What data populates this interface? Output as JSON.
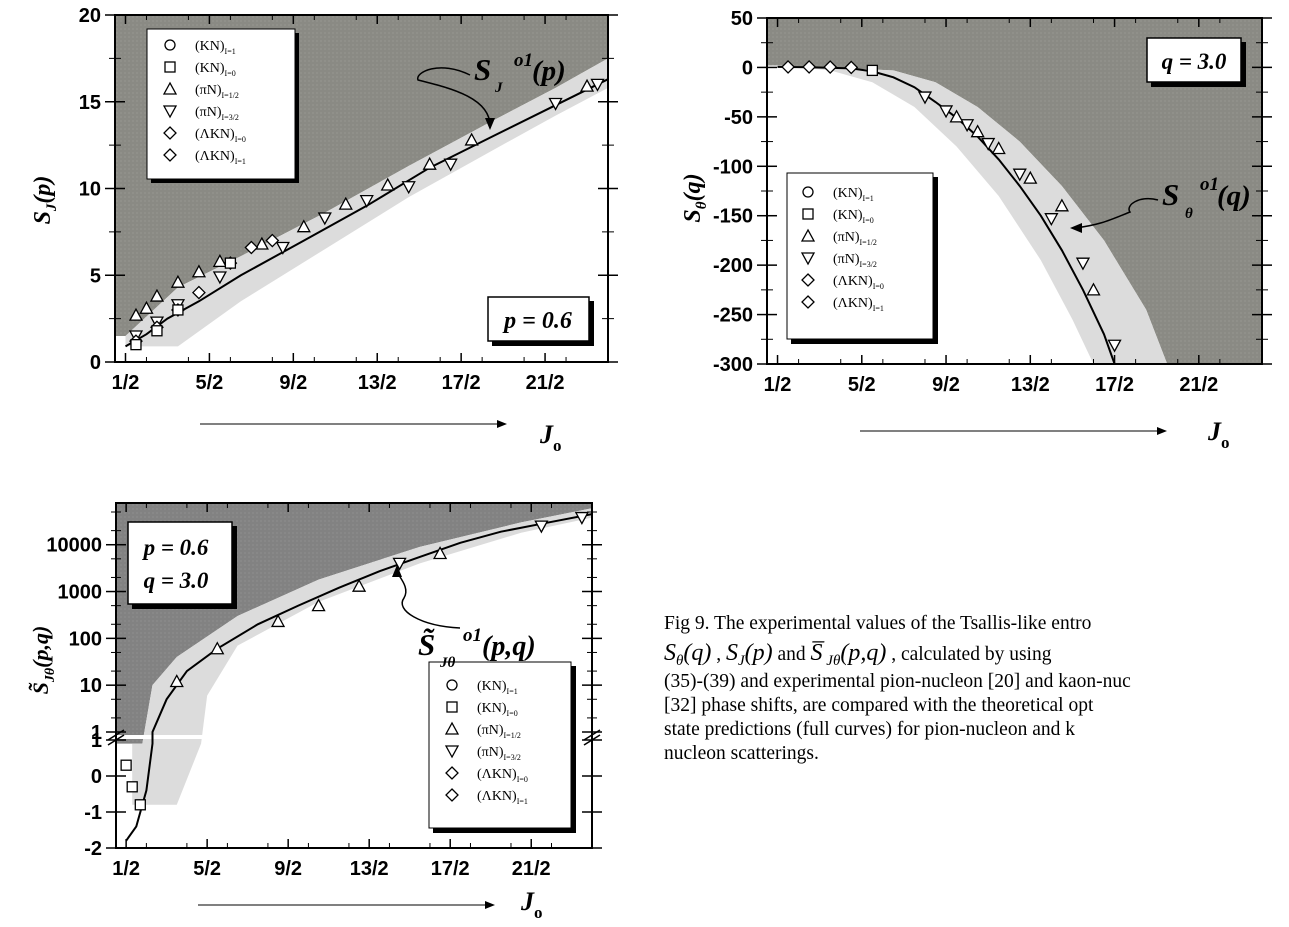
{
  "chart_data": [
    {
      "type": "scatter",
      "panel": "top-left",
      "ylabel": "S_J(p)",
      "xlabel": "J_0",
      "x_ticks": [
        "1/2",
        "5/2",
        "9/2",
        "13/2",
        "17/2",
        "21/2"
      ],
      "y_ticks": [
        "0",
        "5",
        "10",
        "15",
        "20"
      ],
      "xlim": [
        0,
        23.5
      ],
      "ylim": [
        0,
        20
      ],
      "param_box": "p = 0.6",
      "curve_label": "S_J^{o1}(p)",
      "legend": [
        "(KN)_{I=1}",
        "(KN)_{I=0}",
        "(πN)_{I=1/2}",
        "(πN)_{I=3/2}",
        "(ΛKN)_{I=0}",
        "(ΛKN)_{I=1}"
      ],
      "theory_curve": [
        [
          0.5,
          0.9
        ],
        [
          1.5,
          1.6
        ],
        [
          2.5,
          2.5
        ],
        [
          4,
          3.5
        ],
        [
          6,
          5.0
        ],
        [
          9,
          7.0
        ],
        [
          12,
          9.0
        ],
        [
          15,
          11.2
        ],
        [
          18,
          13.0
        ],
        [
          21,
          14.8
        ],
        [
          23.5,
          16.3
        ]
      ],
      "upper_bound": [
        [
          0.5,
          1.5
        ],
        [
          3,
          4.3
        ],
        [
          6,
          6.1
        ],
        [
          10,
          8.6
        ],
        [
          14,
          11.3
        ],
        [
          18,
          13.9
        ],
        [
          21,
          15.8
        ],
        [
          23.5,
          17.5
        ]
      ],
      "lower_bound": [
        [
          3,
          0.9
        ],
        [
          6,
          3.5
        ],
        [
          10,
          6.5
        ],
        [
          14,
          9.5
        ],
        [
          18,
          12.2
        ],
        [
          21,
          14.2
        ],
        [
          23.5,
          15.8
        ]
      ],
      "series": [
        {
          "name": "(πN)_{I=1/2}",
          "points": [
            [
              1,
              2.7
            ],
            [
              1.5,
              3.1
            ],
            [
              2,
              3.8
            ],
            [
              3,
              4.6
            ],
            [
              4,
              5.2
            ],
            [
              5,
              5.8
            ],
            [
              7,
              6.8
            ],
            [
              9,
              7.8
            ],
            [
              11,
              9.1
            ],
            [
              13,
              10.2
            ],
            [
              15,
              11.4
            ],
            [
              17,
              12.8
            ],
            [
              22.5,
              15.9
            ]
          ]
        },
        {
          "name": "(πN)_{I=3/2}",
          "points": [
            [
              1,
              1.5
            ],
            [
              2,
              2.3
            ],
            [
              3,
              3.3
            ],
            [
              5,
              4.9
            ],
            [
              8,
              6.6
            ],
            [
              10,
              8.3
            ],
            [
              12,
              9.3
            ],
            [
              14,
              10.1
            ],
            [
              16,
              11.4
            ],
            [
              21,
              14.9
            ],
            [
              23,
              16.0
            ]
          ]
        },
        {
          "name": "(ΛKN)_{I=0}",
          "points": [
            [
              1,
              1.2
            ],
            [
              2,
              2.0
            ],
            [
              3,
              3.0
            ],
            [
              4,
              4.0
            ],
            [
              5.5,
              5.7
            ],
            [
              6.5,
              6.6
            ],
            [
              7.5,
              7.0
            ]
          ]
        },
        {
          "name": "(KN)_{I=0}",
          "points": [
            [
              1,
              1.0
            ],
            [
              2,
              1.8
            ],
            [
              3,
              3.0
            ],
            [
              5.5,
              5.7
            ]
          ]
        }
      ]
    },
    {
      "type": "scatter",
      "panel": "top-right",
      "ylabel": "S_θ(q)",
      "xlabel": "J_0",
      "x_ticks": [
        "1/2",
        "5/2",
        "9/2",
        "13/2",
        "17/2",
        "21/2"
      ],
      "y_ticks": [
        "50",
        "0",
        "-50",
        "-100",
        "-150",
        "-200",
        "-250",
        "-300"
      ],
      "xlim": [
        0,
        23.5
      ],
      "ylim": [
        -300,
        50
      ],
      "param_box": "q = 3.0",
      "curve_label": "S_θ^{o1}(q)",
      "legend": [
        "(KN)_{I=1}",
        "(KN)_{I=0}",
        "(πN)_{I=1/2}",
        "(πN)_{I=3/2}",
        "(ΛKN)_{I=0}",
        "(ΛKN)_{I=1}"
      ],
      "theory_curve": [
        [
          0.5,
          0.5
        ],
        [
          2,
          0.2
        ],
        [
          4,
          -1
        ],
        [
          5,
          -4
        ],
        [
          6,
          -10
        ],
        [
          7,
          -20
        ],
        [
          8,
          -35
        ],
        [
          9,
          -51
        ],
        [
          10,
          -70
        ],
        [
          11,
          -93
        ],
        [
          12,
          -120
        ],
        [
          13,
          -150
        ],
        [
          14,
          -185
        ],
        [
          15,
          -225
        ],
        [
          16,
          -270
        ],
        [
          16.5,
          -300
        ]
      ],
      "upper_bound": [
        [
          0.5,
          2
        ],
        [
          6,
          -3
        ],
        [
          8,
          -15
        ],
        [
          10,
          -40
        ],
        [
          12,
          -75
        ],
        [
          14,
          -120
        ],
        [
          16,
          -175
        ],
        [
          18,
          -245
        ],
        [
          19,
          -300
        ]
      ],
      "lower_bound": [
        [
          3,
          -3
        ],
        [
          5,
          -15
        ],
        [
          7,
          -40
        ],
        [
          9,
          -80
        ],
        [
          11,
          -130
        ],
        [
          13,
          -195
        ],
        [
          14.5,
          -255
        ],
        [
          15.5,
          -300
        ]
      ],
      "series": [
        {
          "name": "(πN)_{I=3/2}",
          "points": [
            [
              7.5,
              -30
            ],
            [
              8.5,
              -44
            ],
            [
              9.5,
              -58
            ],
            [
              10.5,
              -77
            ],
            [
              12,
              -108
            ],
            [
              13.5,
              -153
            ],
            [
              15,
              -198
            ],
            [
              16.5,
              -281
            ]
          ]
        },
        {
          "name": "(πN)_{I=1/2}",
          "points": [
            [
              9,
              -50
            ],
            [
              10,
              -65
            ],
            [
              11,
              -82
            ],
            [
              12.5,
              -112
            ],
            [
              14,
              -140
            ],
            [
              15.5,
              -225
            ]
          ]
        },
        {
          "name": "(KN)_{I=0}",
          "points": [
            [
              5,
              -3
            ]
          ]
        },
        {
          "name": "(ΛKN)_{I=0}",
          "points": [
            [
              1,
              0.5
            ],
            [
              2,
              0.5
            ],
            [
              3,
              0.4
            ],
            [
              4,
              0
            ]
          ]
        }
      ]
    },
    {
      "type": "scatter",
      "panel": "bottom-left",
      "ylabel": "S̃_Jθ(p,q)",
      "xlabel": "J_0",
      "x_ticks": [
        "1/2",
        "5/2",
        "9/2",
        "13/2",
        "17/2",
        "21/2"
      ],
      "y_ticks_log": [
        "10000",
        "1000",
        "100",
        "10",
        "1"
      ],
      "y_ticks_linear": [
        "1",
        "0",
        "-1",
        "-2"
      ],
      "log_range": [
        1,
        50000
      ],
      "linear_range": [
        -2,
        1
      ],
      "xlim": [
        0,
        23.5
      ],
      "param_box": [
        "p = 0.6",
        "q = 3.0"
      ],
      "curve_label": "S̃_Jθ^{o1}(p,q)",
      "legend": [
        "(KN)_{I=1}",
        "(KN)_{I=0}",
        "(πN)_{I=1/2}",
        "(πN)_{I=3/2}",
        "(ΛKN)_{I=0}",
        "(ΛKN)_{I=1}"
      ],
      "theory_curve_log": [
        [
          1.8,
          1.0
        ],
        [
          2.5,
          5
        ],
        [
          3.5,
          20
        ],
        [
          5,
          60
        ],
        [
          7,
          200
        ],
        [
          9,
          500
        ],
        [
          11,
          1200
        ],
        [
          13,
          2700
        ],
        [
          15,
          5500
        ],
        [
          17,
          11000
        ],
        [
          19,
          19000
        ],
        [
          21,
          28000
        ],
        [
          23.5,
          45000
        ]
      ],
      "theory_curve_linear": [
        [
          0.5,
          -1.8
        ],
        [
          1,
          -1.4
        ],
        [
          1.5,
          -0.4
        ],
        [
          1.8,
          0.9
        ]
      ],
      "series": [
        {
          "name": "(πN)_{I=1/2}",
          "points_log": [
            [
              3,
              12
            ],
            [
              5,
              60
            ],
            [
              8,
              230
            ],
            [
              10,
              500
            ],
            [
              12,
              1300
            ],
            [
              16,
              6500
            ]
          ]
        },
        {
          "name": "(πN)_{I=3/2}",
          "points_log": [
            [
              14,
              4000
            ],
            [
              21,
              25000
            ],
            [
              23,
              38000
            ]
          ]
        },
        {
          "name": "(KN)_{I=0}",
          "points_linear": [
            [
              0.5,
              0.3
            ],
            [
              0.8,
              -0.3
            ],
            [
              1.2,
              -0.8
            ]
          ]
        }
      ]
    }
  ],
  "caption": {
    "line1": "Fig 9. The experimental   values of the Tsallis-like entro",
    "line2_part1": "S",
    "line2_sub1": "θ",
    "line2_part2": "(q)",
    "line2_sep1": " , ",
    "line2_part3": "S",
    "line2_sub2": "J",
    "line2_part4": "(p)",
    "line2_and": "  and  ",
    "line2_part5": "S̅",
    "line2_sub3": " Jθ",
    "line2_part6": "(p,q)",
    "line2_tail": " , calculated by using",
    "line3": "(35)-(39) and experimental pion-nucleon [20] and kaon-nuc",
    "line4": "[32] phase shifts, are compared with the theoretical  opt",
    "line5": "state  predictions  (full  curves)  for  pion-nucleon  and  k",
    "line6": "nucleon scatterings."
  },
  "colors": {
    "dark_region": "#7f7f7f",
    "dark_region_2": "#8a8a85",
    "light_band": "#dcdcdc",
    "ink": "#000000"
  }
}
